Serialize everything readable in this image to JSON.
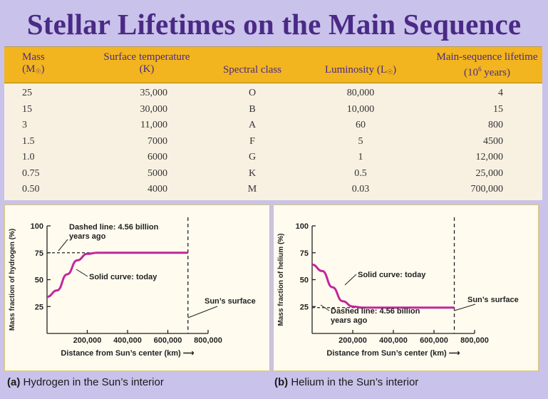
{
  "title": "Stellar Lifetimes on the Main Sequence",
  "table": {
    "headers": {
      "mass_line1": "Mass",
      "mass_line2": "(M",
      "mass_line2_end": ")",
      "temp_line1": "Surface temperature",
      "temp_line2": "(K)",
      "spectral": "Spectral class",
      "lum": "Luminosity (L",
      "lum_end": ")",
      "life_line1": "Main-sequence lifetime",
      "life_line2_a": "(10",
      "life_line2_sup": "6",
      "life_line2_b": " years)"
    },
    "rows": [
      {
        "mass": "25",
        "temp": "35,000",
        "spectral": "O",
        "lum": "80,000",
        "life": "4"
      },
      {
        "mass": "15",
        "temp": "30,000",
        "spectral": "B",
        "lum": "10,000",
        "life": "15"
      },
      {
        "mass": "3",
        "temp": "11,000",
        "spectral": "A",
        "lum": "60",
        "life": "800"
      },
      {
        "mass": "1.5",
        "temp": "7000",
        "spectral": "F",
        "lum": "5",
        "life": "4500"
      },
      {
        "mass": "1.0",
        "temp": "6000",
        "spectral": "G",
        "lum": "1",
        "life": "12,000"
      },
      {
        "mass": "0.75",
        "temp": "5000",
        "spectral": "K",
        "lum": "0.5",
        "life": "25,000"
      },
      {
        "mass": "0.50",
        "temp": "4000",
        "spectral": "M",
        "lum": "0.03",
        "life": "700,000"
      }
    ]
  },
  "chart_data": [
    {
      "type": "line",
      "caption_label": "(a)",
      "caption_text": "Hydrogen in the Sun’s interior",
      "ylabel": "Mass fraction of hydrogen (%)",
      "xlabel": "Distance from Sun’s center (km)",
      "xlabel_arrow": "⟶",
      "xlim": [
        0,
        800000
      ],
      "ylim": [
        0,
        100
      ],
      "yticks": [
        25,
        50,
        75,
        100
      ],
      "xticks": [
        200000,
        400000,
        600000,
        800000
      ],
      "xtick_labels": [
        "200,000",
        "400,000",
        "600,000",
        "800,000"
      ],
      "surface_x": 700000,
      "series": [
        {
          "name": "Solid curve: today",
          "x": [
            0,
            50000,
            100000,
            150000,
            200000,
            250000,
            300000,
            400000,
            500000,
            600000,
            700000
          ],
          "y": [
            34,
            40,
            55,
            68,
            74,
            75,
            75,
            75,
            75,
            75,
            75
          ]
        },
        {
          "name": "Dashed line: 4.56 billion years ago",
          "x": [
            0,
            700000
          ],
          "y": [
            75,
            75
          ]
        }
      ],
      "annotations": {
        "dashed": "Dashed line: 4.56 billion\nyears ago",
        "solid": "Solid curve: today",
        "surface": "Sun’s surface"
      }
    },
    {
      "type": "line",
      "caption_label": "(b)",
      "caption_text": "Helium in the Sun’s interior",
      "ylabel": "Mass fraction of helium (%)",
      "xlabel": "Distance from Sun’s center (km)",
      "xlabel_arrow": "⟶",
      "xlim": [
        0,
        800000
      ],
      "ylim": [
        0,
        100
      ],
      "yticks": [
        25,
        50,
        75,
        100
      ],
      "xticks": [
        200000,
        400000,
        600000,
        800000
      ],
      "xtick_labels": [
        "200,000",
        "400,000",
        "600,000",
        "800,000"
      ],
      "surface_x": 700000,
      "series": [
        {
          "name": "Solid curve: today",
          "x": [
            0,
            50000,
            100000,
            150000,
            200000,
            250000,
            300000,
            400000,
            500000,
            600000,
            700000
          ],
          "y": [
            64,
            58,
            43,
            30,
            25,
            24,
            24,
            24,
            24,
            24,
            24
          ]
        },
        {
          "name": "Dashed line: 4.56 billion years ago",
          "x": [
            0,
            700000
          ],
          "y": [
            24,
            24
          ]
        }
      ],
      "annotations": {
        "dashed": "Dashed line: 4.56 billion\nyears ago",
        "solid": "Solid curve: today",
        "surface": "Sun’s surface"
      }
    }
  ],
  "colors": {
    "title": "#4a2a86",
    "header_bg": "#f2b51f",
    "table_bg": "#f8f1e2",
    "curve": "#c0279c",
    "page_bg": "#c9c2ea"
  }
}
